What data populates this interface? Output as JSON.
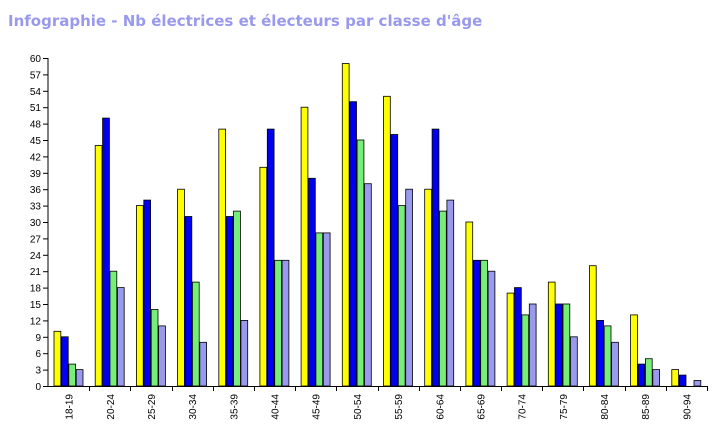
{
  "chart_data": {
    "type": "bar",
    "title": "Infographie - Nb électrices et électeurs par classe d'âge",
    "categories": [
      "18-19",
      "20-24",
      "25-29",
      "30-34",
      "35-39",
      "40-44",
      "45-49",
      "50-54",
      "55-59",
      "60-64",
      "65-69",
      "70-74",
      "75-79",
      "80-84",
      "85-89",
      "90-94"
    ],
    "series": [
      {
        "color": "#ffff00",
        "values": [
          10,
          44,
          33,
          36,
          47,
          40,
          51,
          59,
          53,
          36,
          30,
          17,
          19,
          22,
          13,
          3
        ]
      },
      {
        "color": "#0000ee",
        "values": [
          9,
          49,
          34,
          31,
          31,
          47,
          38,
          52,
          46,
          47,
          23,
          18,
          15,
          12,
          4,
          2
        ]
      },
      {
        "color": "#77ee77",
        "values": [
          4,
          21,
          14,
          19,
          32,
          23,
          28,
          45,
          33,
          32,
          23,
          13,
          15,
          11,
          5,
          0
        ]
      },
      {
        "color": "#9999ee",
        "values": [
          3,
          18,
          11,
          8,
          12,
          23,
          28,
          37,
          36,
          34,
          21,
          15,
          9,
          8,
          3,
          1
        ]
      }
    ],
    "xlabel": "",
    "ylabel": "",
    "ylim": [
      0,
      60
    ],
    "yticks": [
      0,
      3,
      6,
      9,
      12,
      15,
      18,
      21,
      24,
      27,
      30,
      33,
      36,
      39,
      42,
      45,
      48,
      51,
      54,
      57,
      60
    ],
    "grid": false,
    "legend": "none"
  }
}
